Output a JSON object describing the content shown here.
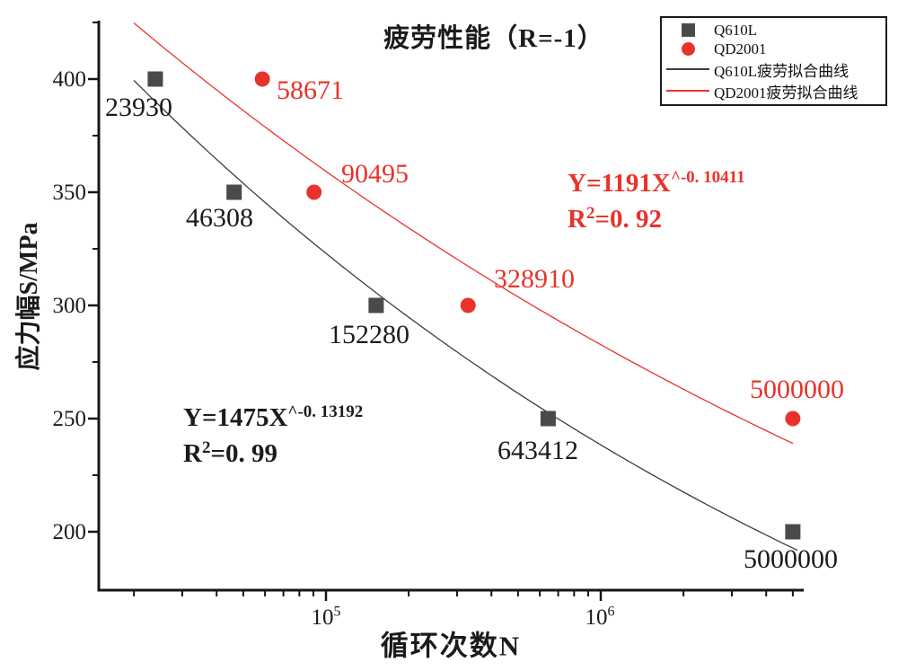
{
  "axes": {
    "y_tick_labels": [
      "400",
      "350",
      "300",
      "250",
      "200"
    ],
    "x_tick_labels": [
      {
        "base": "10",
        "exp": "5"
      },
      {
        "base": "10",
        "exp": "6"
      }
    ]
  },
  "annotations": {
    "black": {
      "eq_base": "Y=1475X",
      "eq_sup": "^-0. 13192",
      "r2_base": "R",
      "r2_exp": "2",
      "r2_rest": "=0. 99"
    },
    "red": {
      "eq_base": "Y=1191X",
      "eq_sup": "^-0. 10411",
      "r2_base": "R",
      "r2_exp": "2",
      "r2_rest": "=0. 92"
    }
  },
  "chart_data": {
    "type": "scatter",
    "title": "疲劳性能（R=-1）",
    "xlabel": "循环次数N",
    "ylabel": "应力幅S/MPa",
    "x_scale": "log",
    "grid": false,
    "legend_position": "top-right",
    "xlim": [
      15000,
      5500000
    ],
    "ylim": [
      175,
      428
    ],
    "x_major_ticks": [
      100000,
      1000000
    ],
    "x_minor_ticks": [
      20000,
      30000,
      40000,
      50000,
      60000,
      70000,
      80000,
      90000,
      200000,
      300000,
      400000,
      500000,
      600000,
      700000,
      800000,
      900000,
      2000000,
      3000000,
      4000000,
      5000000
    ],
    "y_major_ticks": [
      400,
      350,
      300,
      250,
      200
    ],
    "y_minor_ticks": [
      425,
      375,
      325,
      275,
      225
    ],
    "axis_color": "#161616",
    "series": [
      {
        "name": "Q610L",
        "marker": "square",
        "color": "#4a4a4a",
        "label_color": "#1b1b1d",
        "points": [
          {
            "n": 23930,
            "s": 400
          },
          {
            "n": 46308,
            "s": 350
          },
          {
            "n": 152280,
            "s": 300
          },
          {
            "n": 643412,
            "s": 250
          },
          {
            "n": 5000000,
            "s": 200
          }
        ],
        "fit": {
          "label": "Q610L疲劳拟合曲线",
          "equation": "Y=1475X^-0.13192",
          "coefficient": 1475,
          "exponent": -0.13192,
          "r_squared": 0.99,
          "color": "#3c3c3c",
          "range": [
            20000,
            5200000
          ]
        }
      },
      {
        "name": "QD2001",
        "marker": "circle",
        "color": "#e8332b",
        "label_color": "#e8332b",
        "points": [
          {
            "n": 58671,
            "s": 400
          },
          {
            "n": 90495,
            "s": 350
          },
          {
            "n": 328910,
            "s": 300
          },
          {
            "n": 5000000,
            "s": 250
          }
        ],
        "fit": {
          "label": "QD2001疲劳拟合曲线",
          "equation": "Y=1191X^-0.10411",
          "coefficient": 1191,
          "exponent": -0.10411,
          "r_squared": 0.92,
          "color": "#e8332b",
          "range": [
            20000,
            5000000
          ]
        }
      }
    ]
  }
}
